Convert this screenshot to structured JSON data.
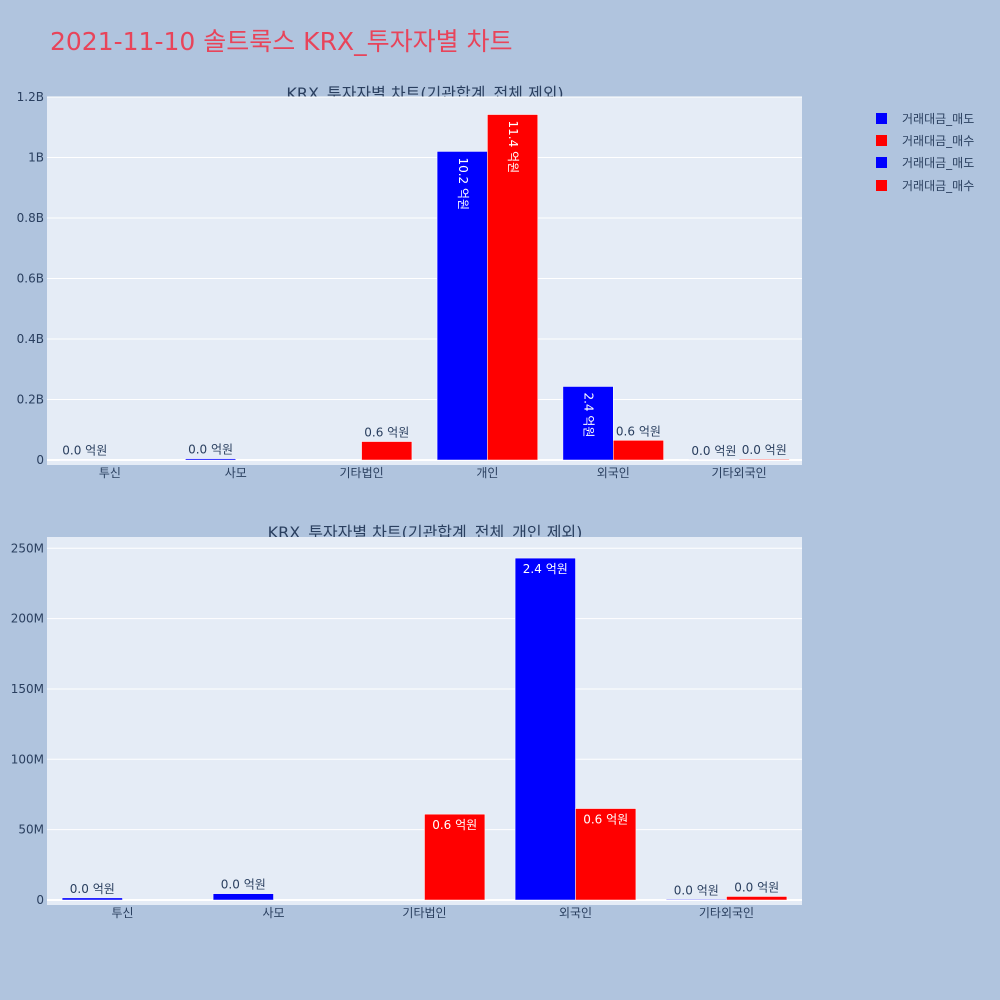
{
  "page": {
    "title": "2021-11-10 솔트룩스 KRX_투자자별 차트"
  },
  "legend": [
    {
      "label": "거래대금_매도",
      "color": "#0000ff"
    },
    {
      "label": "거래대금_매수",
      "color": "#ff0000"
    },
    {
      "label": "거래대금_매도",
      "color": "#0000ff"
    },
    {
      "label": "거래대금_매수",
      "color": "#ff0000"
    }
  ],
  "colors": {
    "sell": "#0000ff",
    "buy": "#ff0000",
    "plot_bg": "#e5ecf6",
    "page_bg": "#b0c4de",
    "title": "#e8445a"
  },
  "chart_data": [
    {
      "type": "bar",
      "title": "KRX_투자자별 차트(기관합계_전체 제외)",
      "categories": [
        "투신",
        "사모",
        "기타법인",
        "개인",
        "외국인",
        "기타외국인"
      ],
      "ylim": [
        0,
        1200000000
      ],
      "yticks": [
        0,
        200000000,
        400000000,
        600000000,
        800000000,
        1000000000,
        1200000000
      ],
      "ytick_labels": [
        "0",
        "0.2B",
        "0.4B",
        "0.6B",
        "0.8B",
        "1B",
        "1.2B"
      ],
      "series": [
        {
          "name": "거래대금_매도",
          "color": "#0000ff",
          "values": [
            1500000,
            4500000,
            0,
            1020000000,
            243000000,
            500000
          ],
          "labels": [
            "0.0 억원",
            "0.0 억원",
            "",
            "10.2 억원",
            "2.4 억원",
            "0.0 억원"
          ]
        },
        {
          "name": "거래대금_매수",
          "color": "#ff0000",
          "values": [
            0,
            0,
            61000000,
            1142000000,
            65000000,
            2500000
          ],
          "labels": [
            "",
            "",
            "0.6 억원",
            "11.4 억원",
            "0.6 억원",
            "0.0 억원"
          ]
        }
      ]
    },
    {
      "type": "bar",
      "title": "KRX_투자자별 차트(기관합계_전체_개인 제외)",
      "categories": [
        "투신",
        "사모",
        "기타법인",
        "외국인",
        "기타외국인"
      ],
      "ylim": [
        0,
        258000000
      ],
      "yticks": [
        0,
        50000000,
        100000000,
        150000000,
        200000000,
        250000000
      ],
      "ytick_labels": [
        "0",
        "50M",
        "100M",
        "150M",
        "200M",
        "250M"
      ],
      "series": [
        {
          "name": "거래대금_매도",
          "color": "#0000ff",
          "values": [
            1500000,
            4500000,
            0,
            243000000,
            500000
          ],
          "labels": [
            "0.0 억원",
            "0.0 억원",
            "",
            "2.4 억원",
            "0.0 억원"
          ]
        },
        {
          "name": "거래대금_매수",
          "color": "#ff0000",
          "values": [
            0,
            0,
            61000000,
            65000000,
            2500000
          ],
          "labels": [
            "",
            "",
            "0.6 억원",
            "0.6 억원",
            "0.0 억원"
          ]
        }
      ]
    }
  ]
}
